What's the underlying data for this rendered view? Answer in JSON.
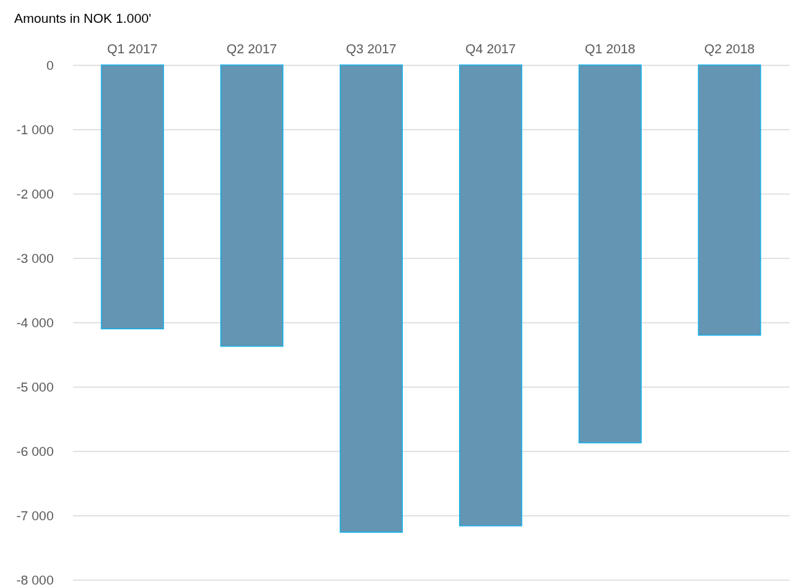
{
  "chart_data": {
    "type": "bar",
    "ylabel": "Amounts in NOK 1.000'",
    "categories": [
      "Q1 2017",
      "Q2 2017",
      "Q3 2017",
      "Q4 2017",
      "Q1 2018",
      "Q2 2018"
    ],
    "series": [
      {
        "color": "#6495b2",
        "values": [
          -4100,
          -4370,
          -7260,
          -7160,
          -5870,
          -4200
        ]
      }
    ],
    "ylim": [
      -8000,
      0
    ],
    "yticks": [
      0,
      {
        "value": -1000,
        "label": "-1 000"
      },
      {
        "value": -2000,
        "label": "-2 000"
      },
      {
        "value": -3000,
        "label": "-3 000"
      },
      {
        "value": -4000,
        "label": "-4 000"
      },
      {
        "value": -5000,
        "label": "-5 000"
      },
      {
        "value": -6000,
        "label": "-6 000"
      },
      {
        "value": -7000,
        "label": "-7 000"
      },
      {
        "value": -8000,
        "label": "-8 000"
      }
    ],
    "grid": "y",
    "legend": false
  }
}
